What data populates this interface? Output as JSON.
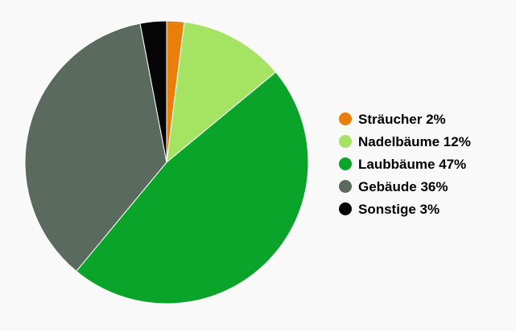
{
  "chart_data": {
    "type": "pie",
    "slices": [
      {
        "label": "Sträucher 2%",
        "value": 2,
        "color": "#e87e0c"
      },
      {
        "label": "Nadelbäume 12%",
        "value": 12,
        "color": "#a5e462"
      },
      {
        "label": "Laubbäume 47%",
        "value": 47,
        "color": "#0ba42a"
      },
      {
        "label": "Gebäude 36%",
        "value": 36,
        "color": "#5b6a5f"
      },
      {
        "label": "Sonstige 3%",
        "value": 3,
        "color": "#050505"
      }
    ],
    "start_angle": "top",
    "direction": "clockwise",
    "legend_position": "right"
  }
}
